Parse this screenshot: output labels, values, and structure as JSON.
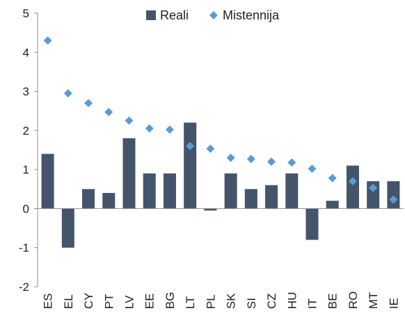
{
  "chart_data": {
    "type": "bar",
    "categories": [
      "ES",
      "EL",
      "CY",
      "PT",
      "LV",
      "EE",
      "BG",
      "LT",
      "PL",
      "SK",
      "SI",
      "CZ",
      "HU",
      "IT",
      "BE",
      "RO",
      "MT",
      "IE"
    ],
    "series": [
      {
        "name": "Reali",
        "kind": "bar",
        "color": "#44546a",
        "values": [
          1.4,
          -1.0,
          0.5,
          0.4,
          1.8,
          0.9,
          0.9,
          2.2,
          -0.05,
          0.9,
          0.5,
          0.6,
          0.9,
          -0.8,
          0.2,
          1.1,
          0.7,
          0.7
        ]
      },
      {
        "name": "Mistennija",
        "kind": "marker",
        "marker": "diamond",
        "color": "#5b9bd5",
        "values": [
          4.3,
          2.95,
          2.7,
          2.47,
          2.25,
          2.05,
          2.02,
          1.6,
          1.53,
          1.3,
          1.27,
          1.2,
          1.18,
          1.02,
          0.78,
          0.7,
          0.53,
          0.23
        ]
      }
    ],
    "title": "",
    "xlabel": "",
    "ylabel": "",
    "ylim": [
      -2,
      5
    ],
    "yticks": [
      "-2",
      "-1",
      "0",
      "1",
      "2",
      "3",
      "4",
      "5"
    ],
    "grid": false,
    "legend_position": "top-center"
  }
}
